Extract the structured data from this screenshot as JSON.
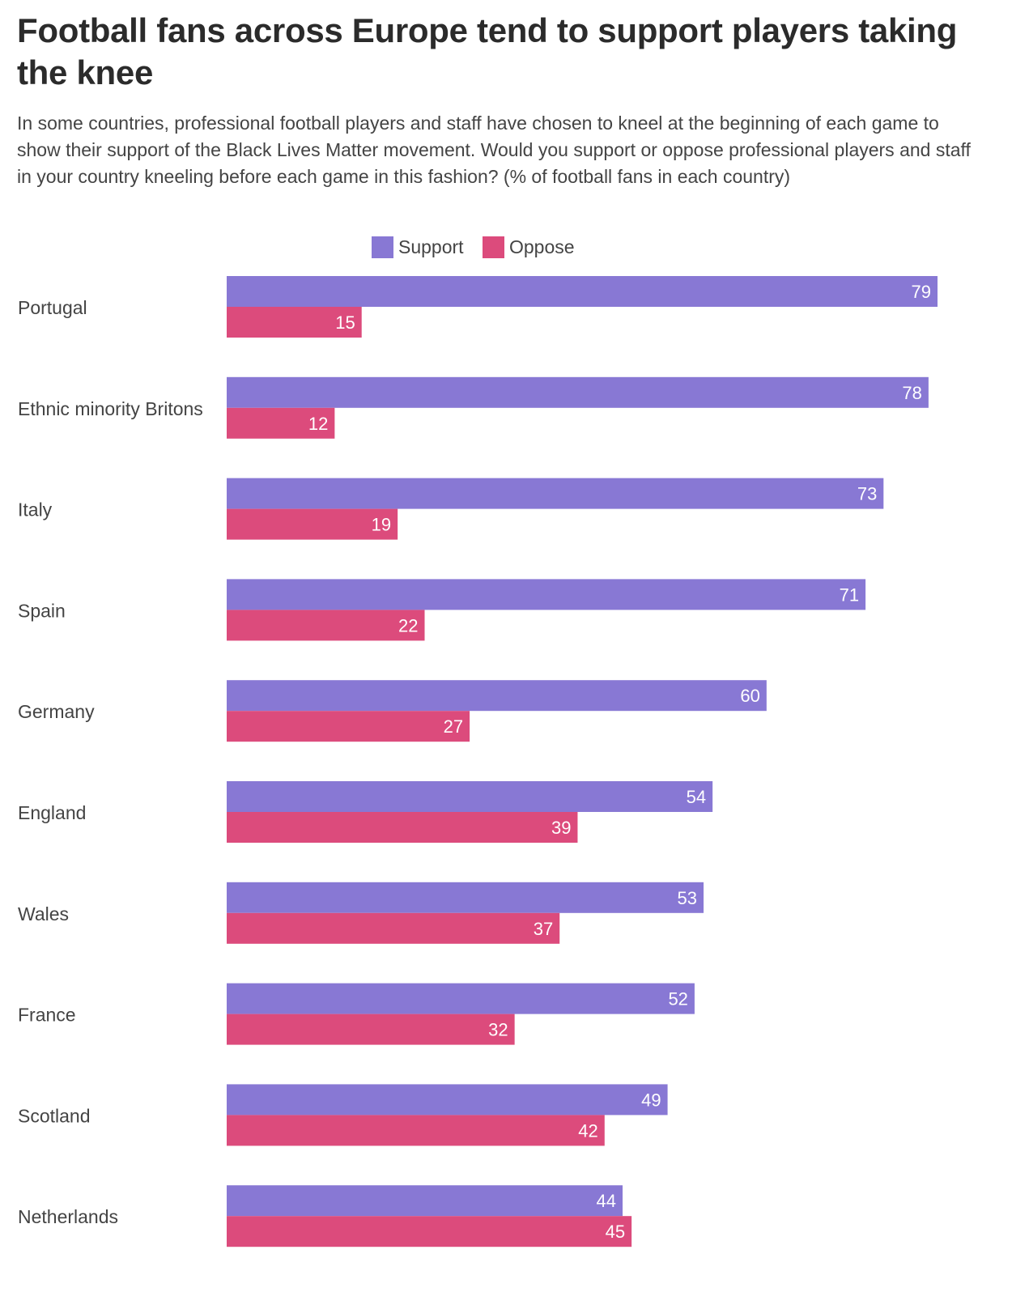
{
  "chart_data": {
    "type": "bar",
    "orientation": "horizontal",
    "title": "Football fans across Europe tend to support players taking the knee",
    "subtitle": "In some countries, professional football players and staff have chosen to kneel at the beginning of each game to show their support of the Black Lives Matter movement. Would you support or oppose professional players and staff in your country kneeling before each game in this fashion? (% of football fans in each country)",
    "categories": [
      "Portugal",
      "Ethnic minority Britons",
      "Italy",
      "Spain",
      "Germany",
      "England",
      "Wales",
      "France",
      "Scotland",
      "Netherlands"
    ],
    "series": [
      {
        "name": "Support",
        "color": "#8878d4",
        "values": [
          79,
          78,
          73,
          71,
          60,
          54,
          53,
          52,
          49,
          44
        ]
      },
      {
        "name": "Oppose",
        "color": "#dc4b7c",
        "values": [
          15,
          12,
          19,
          22,
          27,
          39,
          37,
          32,
          42,
          45
        ]
      }
    ],
    "xlim": [
      0,
      79
    ],
    "data_labels": true,
    "legend": "top-center",
    "grid": false
  }
}
